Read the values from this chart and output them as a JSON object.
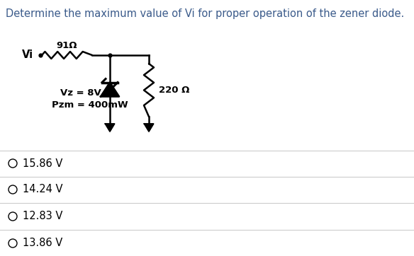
{
  "title": "Determine the maximum value of Vi for proper operation of the zener diode.",
  "title_color": "#3a5a8a",
  "title_fontsize": 10.5,
  "options": [
    "15.86 V",
    "14.24 V",
    "12.83 V",
    "13.86 V"
  ],
  "option_fontsize": 10.5,
  "circuit_label_vi": "Vi",
  "circuit_label_r1": "91Ω",
  "circuit_label_r2": "220 Ω",
  "circuit_label_vz": "Vz = 8V",
  "circuit_label_pzm": "Pzm = 400mW",
  "background_color": "#ffffff",
  "text_color": "#000000",
  "line_color": "#000000",
  "separator_color": "#cccccc"
}
